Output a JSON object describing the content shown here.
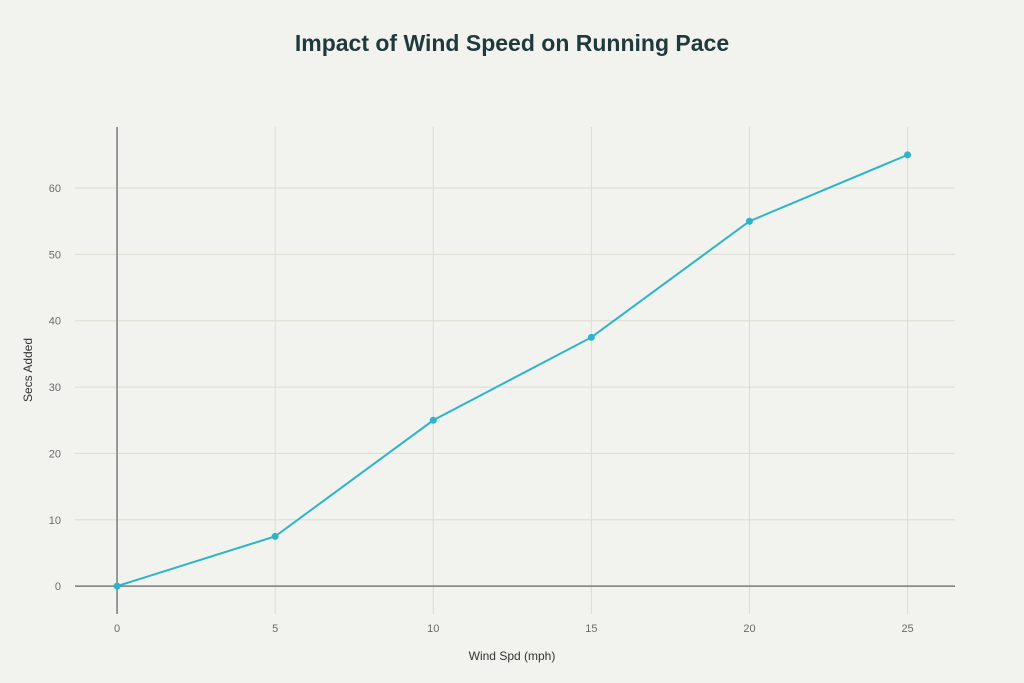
{
  "chart_data": {
    "type": "line",
    "title": "Impact of Wind Speed on Running Pace",
    "xlabel": "Wind Spd (mph)",
    "ylabel": "Secs Added",
    "x": [
      0,
      5,
      10,
      15,
      20,
      25
    ],
    "y": [
      0,
      7.5,
      25,
      37.5,
      55,
      65
    ],
    "xticks": [
      0,
      5,
      10,
      15,
      20,
      25
    ],
    "yticks": [
      0,
      10,
      20,
      30,
      40,
      50,
      60
    ],
    "xlim": [
      -1.33,
      26.5
    ],
    "ylim": [
      -4.2,
      69.2
    ],
    "grid": true,
    "legend": "none",
    "colors": {
      "line": "#2cb5c6",
      "background": "#f2f2ee",
      "grid": "#dcdcd2",
      "axis": "#7a7a7a"
    }
  }
}
